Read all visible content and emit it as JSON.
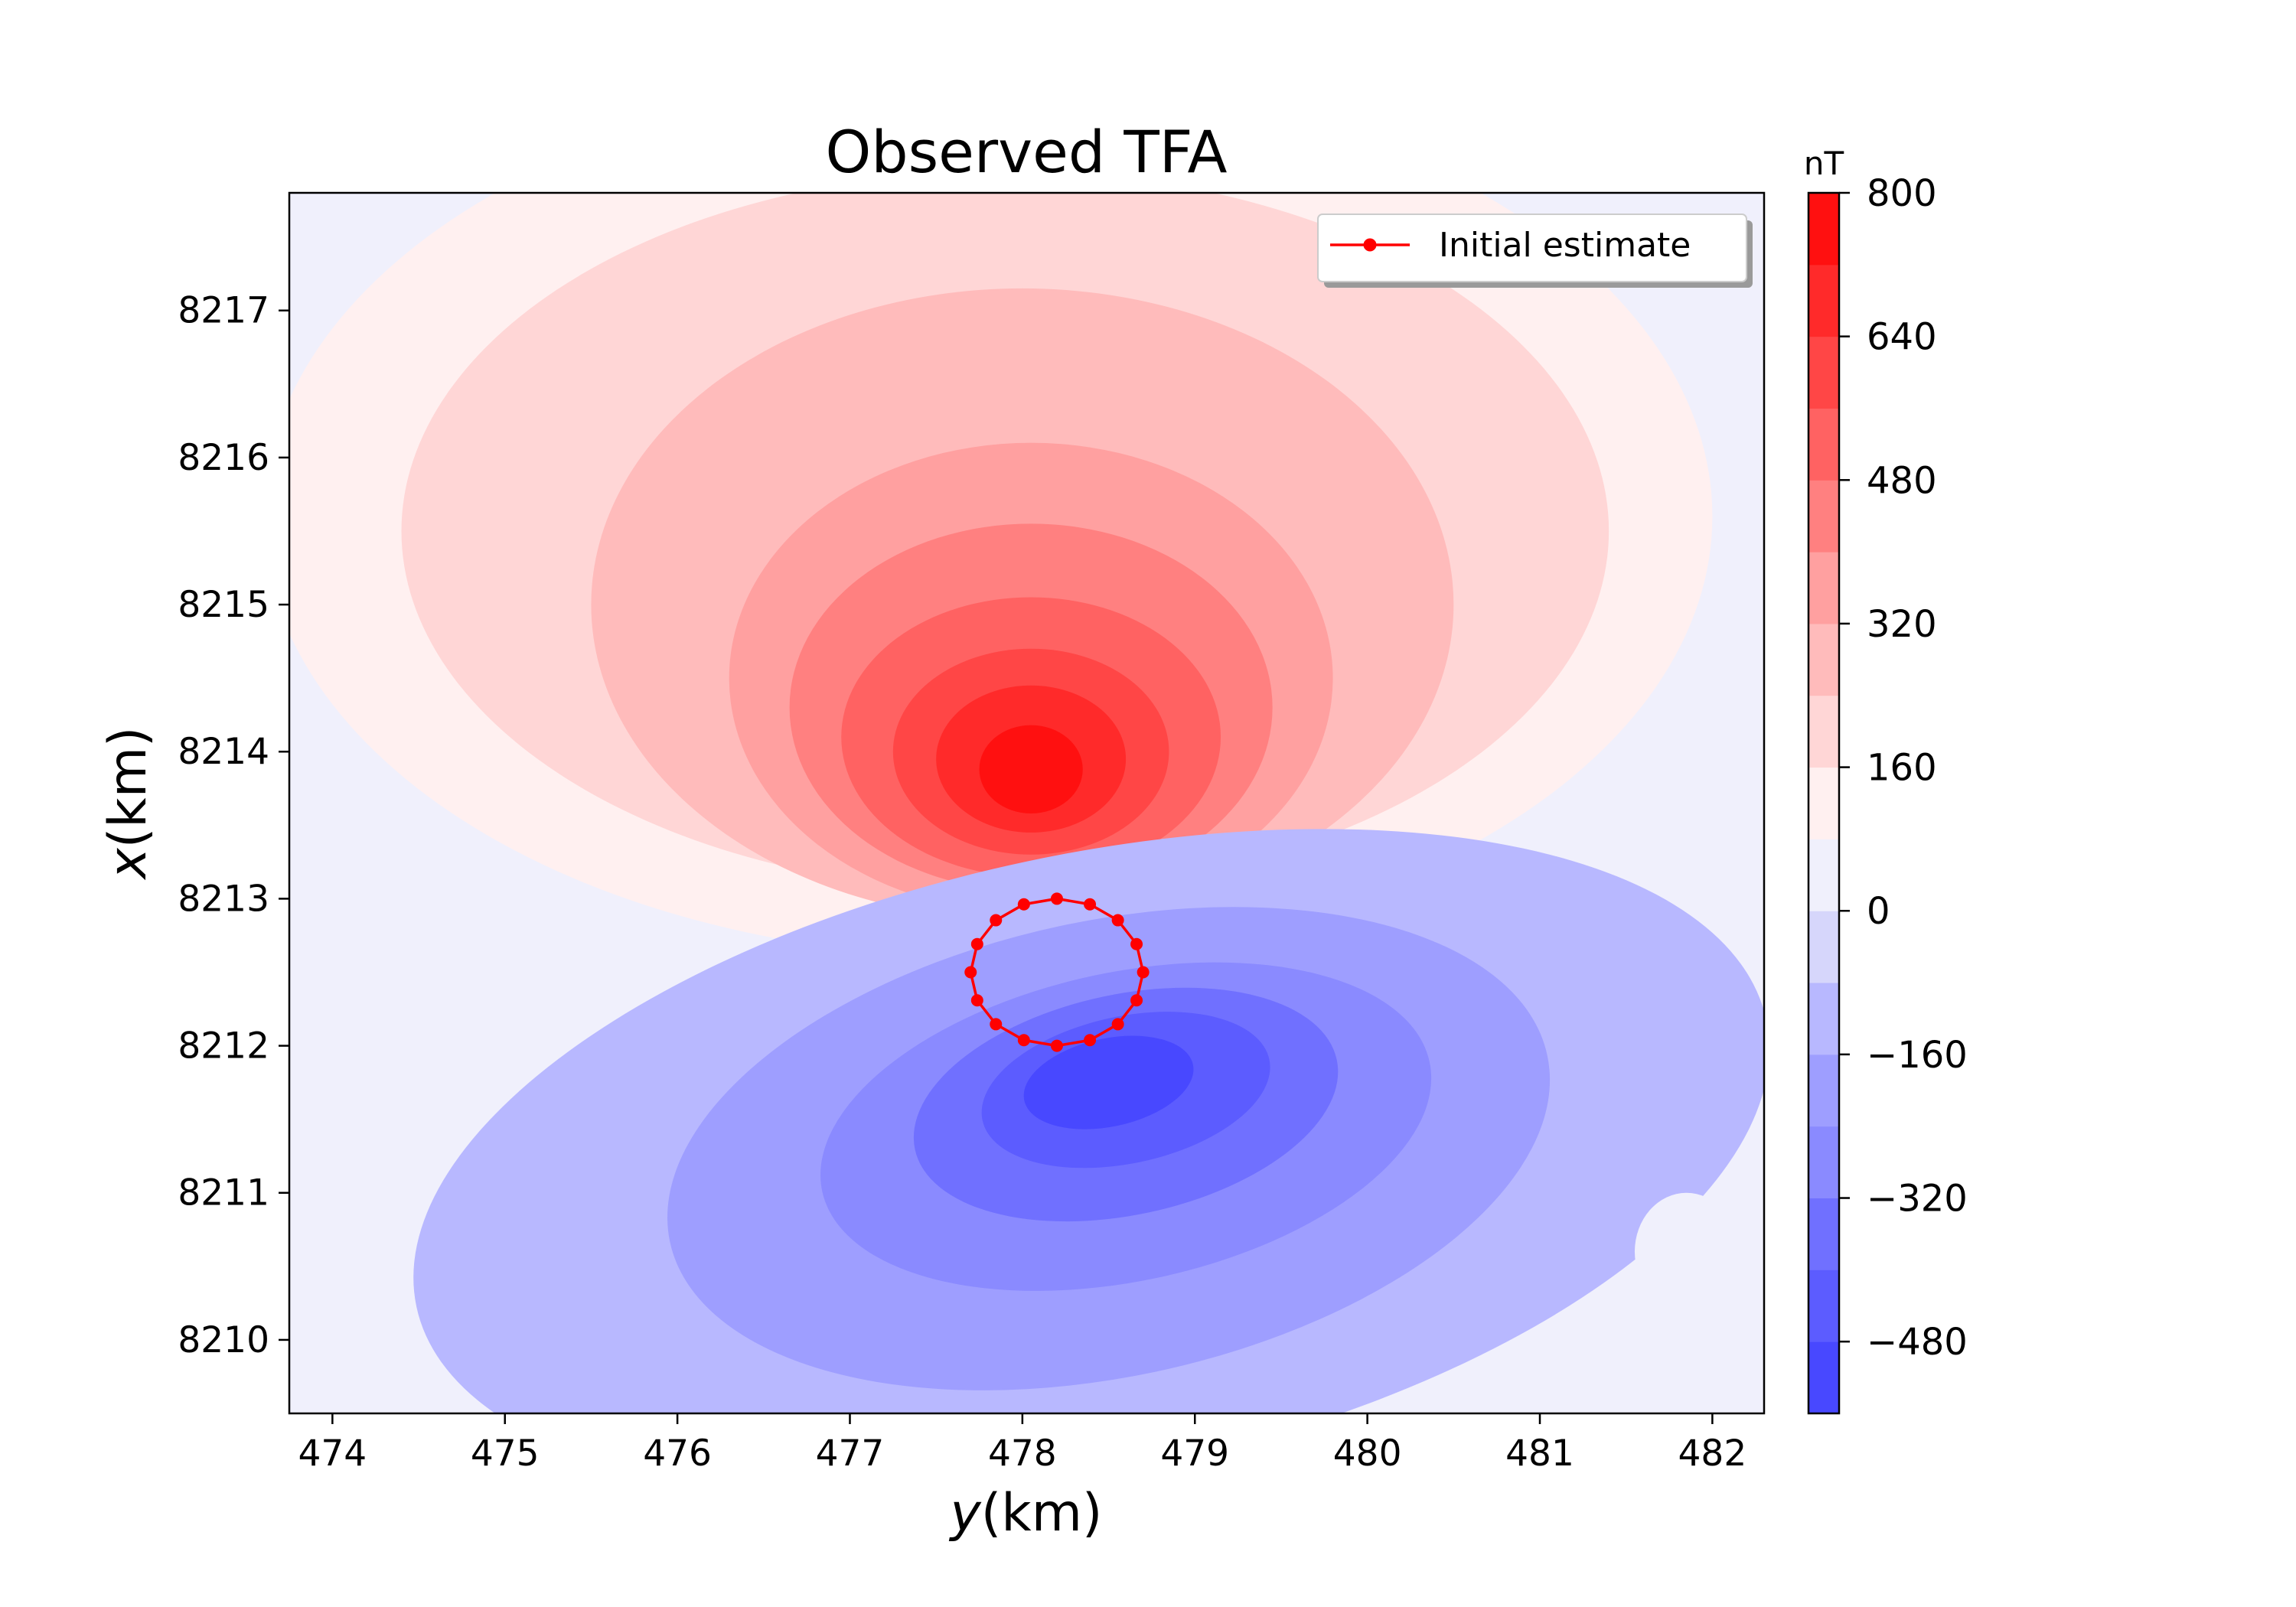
{
  "chart_data": {
    "type": "heatmap",
    "title": "Observed TFA",
    "xlabel_italic": "y",
    "xlabel_unit": "(km)",
    "ylabel_italic": "x",
    "ylabel_unit": "(km)",
    "xlim": [
      473.75,
      482.3
    ],
    "ylim": [
      8209.5,
      8217.8
    ],
    "xticks": [
      474,
      475,
      476,
      477,
      478,
      479,
      480,
      481,
      482
    ],
    "yticks": [
      8210,
      8211,
      8212,
      8213,
      8214,
      8215,
      8216,
      8217
    ],
    "colorbar": {
      "unit": "nT",
      "min": -560,
      "max": 800,
      "levels": [
        -560,
        -480,
        -400,
        -320,
        -240,
        -160,
        -80,
        0,
        80,
        160,
        240,
        320,
        400,
        480,
        560,
        640,
        720,
        800
      ],
      "colors": [
        "#4848ff",
        "#5c5cff",
        "#7070ff",
        "#8a8aff",
        "#9e9eff",
        "#b8b8ff",
        "#d6d6fb",
        "#f0f0fc",
        "#fff0f0",
        "#ffd6d6",
        "#ffbbbb",
        "#ffa0a0",
        "#ff8080",
        "#ff6262",
        "#ff4646",
        "#ff2a2a",
        "#ff1010"
      ],
      "ticks": [
        800,
        640,
        480,
        320,
        160,
        0,
        -160,
        -320,
        -480
      ],
      "tick_labels": [
        "800",
        "640",
        "480",
        "320",
        "160",
        "0",
        "−160",
        "−320",
        "−480"
      ]
    },
    "anomalies": [
      {
        "sign": "positive",
        "center_y": 478.0,
        "center_x": 8213.8,
        "peak_nT": 780
      },
      {
        "sign": "negative",
        "center_y": 478.6,
        "center_x": 8211.7,
        "peak_nT": -540
      }
    ],
    "series": [
      {
        "name": "Initial estimate",
        "color": "#ff0000",
        "marker": "circle",
        "center": [
          478.2,
          8212.5
        ],
        "radius": [
          0.5,
          0.5
        ],
        "vertex_count": 16
      }
    ],
    "legend_position": "upper-right",
    "grid": false
  }
}
